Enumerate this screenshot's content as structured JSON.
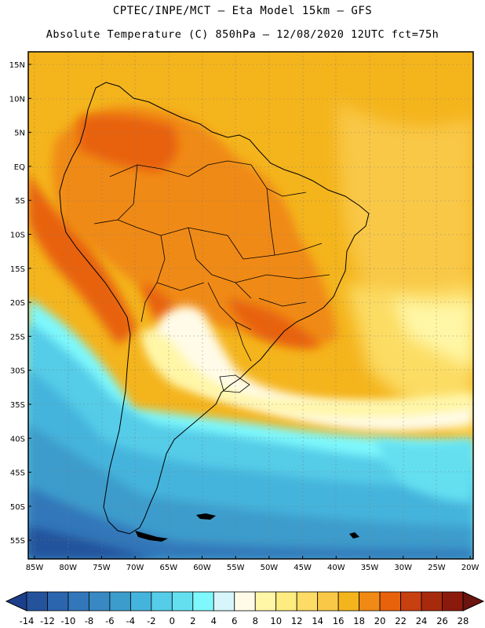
{
  "header": {
    "line1": "CPTEC/INPE/MCT —  Eta Model 15km — GFS",
    "line2": "Absolute Temperature (C) 850hPa — 12/08/2020 12UTC fct=75h"
  },
  "axes": {
    "y_labels": [
      "15N",
      "10N",
      "5N",
      "EQ",
      "5S",
      "10S",
      "15S",
      "20S",
      "25S",
      "30S",
      "35S",
      "40S",
      "45S",
      "50S",
      "55S"
    ],
    "x_labels": [
      "85W",
      "80W",
      "75W",
      "70W",
      "65W",
      "60W",
      "55W",
      "50W",
      "45W",
      "40W",
      "35W",
      "30W",
      "25W",
      "20W"
    ]
  },
  "colorbar": {
    "labels": [
      "-14",
      "-12",
      "-10",
      "-8",
      "-6",
      "-4",
      "-2",
      "0",
      "2",
      "4",
      "6",
      "8",
      "10",
      "12",
      "14",
      "16",
      "18",
      "20",
      "22",
      "24",
      "26",
      "28"
    ],
    "colors": [
      "#1c3f8c",
      "#24539c",
      "#2b65ae",
      "#3277b9",
      "#3889c3",
      "#3c9ccc",
      "#45b4dc",
      "#55cce8",
      "#63dff0",
      "#7ef8fc",
      "#d6f6fc",
      "#fffbe8",
      "#fff6a6",
      "#ffec80",
      "#fcdc64",
      "#f9c846",
      "#f4b41c",
      "#f08a14",
      "#e8620c",
      "#c84010",
      "#a82a0c",
      "#8c1a0c",
      "#6c1410"
    ]
  }
}
